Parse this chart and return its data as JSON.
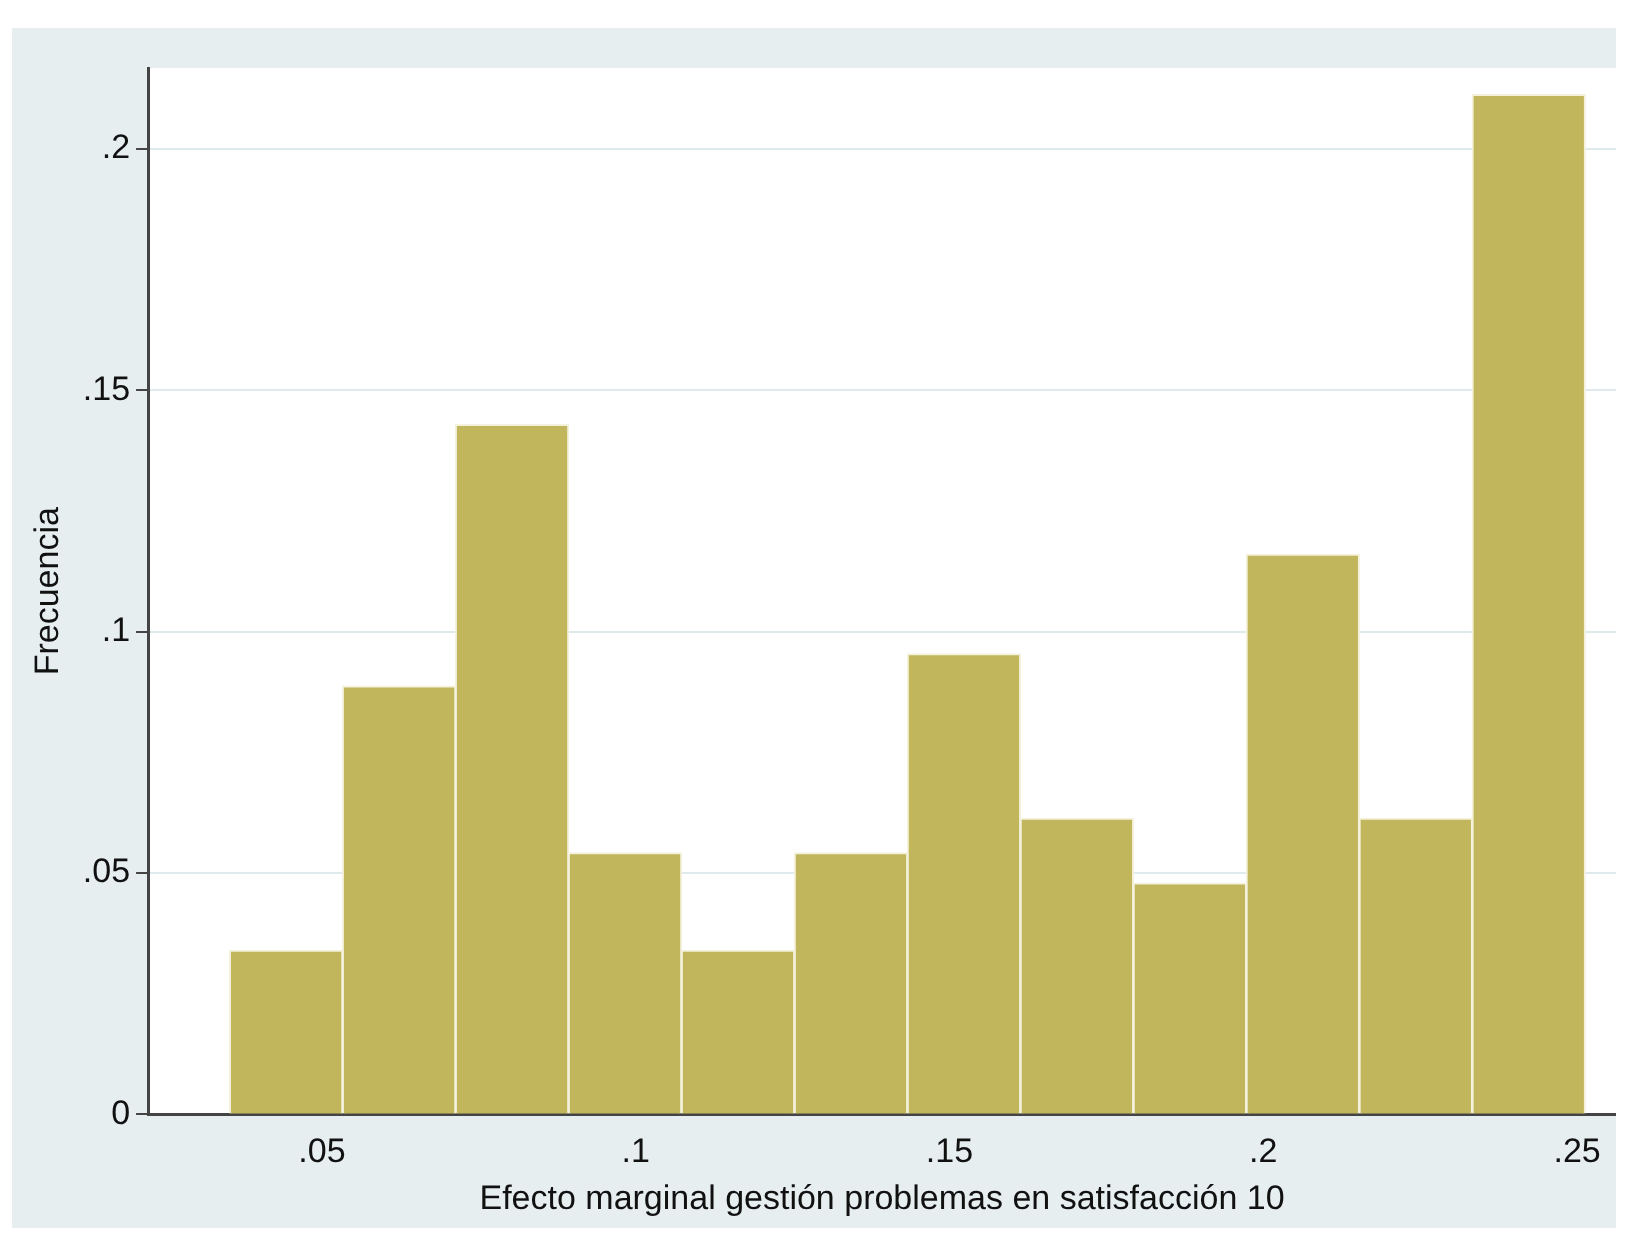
{
  "chart_data": {
    "type": "histogram",
    "xlabel": "Efecto marginal gestión problemas en satisfacción 10",
    "ylabel": "Frecuencia",
    "bins": [
      0.0353,
      0.0533,
      0.0713,
      0.0893,
      0.1073,
      0.1253,
      0.1433,
      0.1613,
      0.1793,
      0.1973,
      0.2153,
      0.2333,
      0.2513
    ],
    "values": [
      0.034,
      0.0887,
      0.1429,
      0.0542,
      0.034,
      0.0542,
      0.0954,
      0.0613,
      0.0479,
      0.116,
      0.0613,
      0.2113
    ],
    "color": "#c2b65c",
    "xlim": [
      0.0223,
      0.2562
    ],
    "xticks": [
      {
        "value": 0.05,
        "label": ".05"
      },
      {
        "value": 0.1,
        "label": ".1"
      },
      {
        "value": 0.15,
        "label": ".15"
      },
      {
        "value": 0.2,
        "label": ".2"
      },
      {
        "value": 0.25,
        "label": ".25"
      }
    ],
    "ylim": [
      0,
      0.2168
    ],
    "yticks": [
      0,
      {
        "value": 0.05,
        "label": ".05"
      },
      {
        "value": 0.1,
        "label": ".1"
      },
      {
        "value": 0.15,
        "label": ".15"
      },
      {
        "value": 0.2,
        "label": ".2"
      }
    ],
    "grid": "y"
  }
}
